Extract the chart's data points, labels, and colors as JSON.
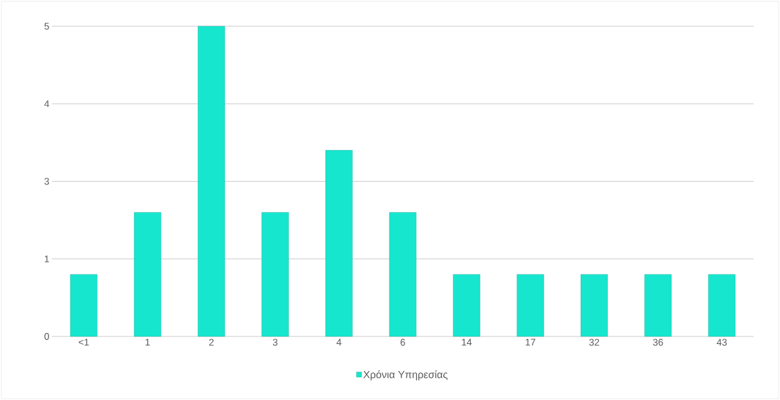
{
  "chart_data": {
    "type": "bar",
    "categories": [
      "<1",
      "1",
      "2",
      "3",
      "4",
      "6",
      "14",
      "17",
      "32",
      "36",
      "43"
    ],
    "series": [
      {
        "name": "Χρόνια Υπηρεσίας",
        "color": "#17e6cf",
        "values": [
          1,
          2,
          5,
          2,
          3,
          2,
          1,
          1,
          1,
          1,
          1
        ]
      }
    ],
    "ylim": [
      0,
      5
    ],
    "yticks": [
      {
        "value": 0,
        "label": "0"
      },
      {
        "value": 1.25,
        "label": "1"
      },
      {
        "value": 2.5,
        "label": "3"
      },
      {
        "value": 3.75,
        "label": "4"
      },
      {
        "value": 5,
        "label": "5"
      }
    ],
    "grid": "y",
    "legend": "bottom"
  }
}
